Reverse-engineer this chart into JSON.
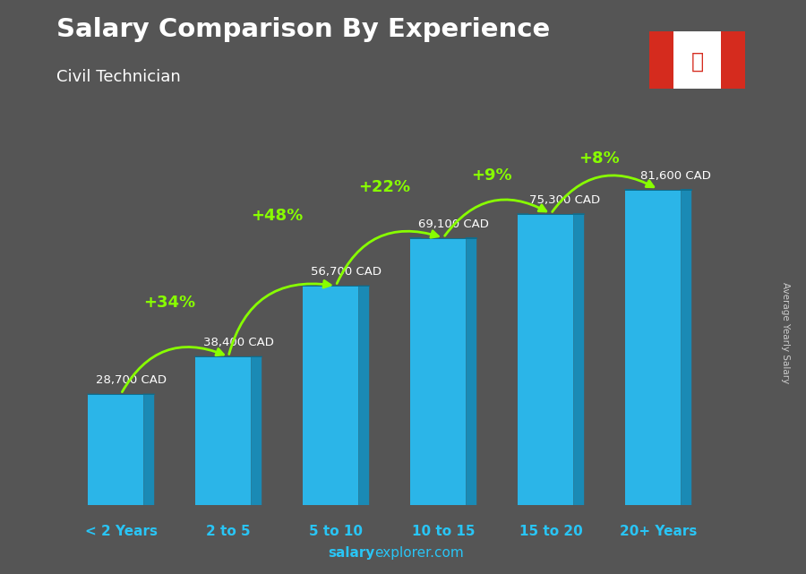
{
  "title": "Salary Comparison By Experience",
  "subtitle": "Civil Technician",
  "categories": [
    "< 2 Years",
    "2 to 5",
    "5 to 10",
    "10 to 15",
    "15 to 20",
    "20+ Years"
  ],
  "values": [
    28700,
    38400,
    56700,
    69100,
    75300,
    81600
  ],
  "labels": [
    "28,700 CAD",
    "38,400 CAD",
    "56,700 CAD",
    "69,100 CAD",
    "75,300 CAD",
    "81,600 CAD"
  ],
  "pct_changes": [
    "+34%",
    "+48%",
    "+22%",
    "+9%",
    "+8%"
  ],
  "face_color": "#2BB5E8",
  "side_color": "#1A8AB5",
  "top_color": "#6DD5F5",
  "bg_color": "#555555",
  "title_color": "#FFFFFF",
  "subtitle_color": "#FFFFFF",
  "label_color": "#FFFFFF",
  "pct_color": "#88FF00",
  "xlabel_color": "#29C5F6",
  "footer_salary": "salary",
  "footer_explorer": "explorer",
  "footer_com": ".com",
  "footer_color_bold": "#29C5F6",
  "footer_color_normal": "#FFFFFF",
  "side_label": "Average Yearly Salary",
  "ylim": [
    0,
    92000
  ],
  "bar_width": 0.52,
  "dx3d": 0.1
}
